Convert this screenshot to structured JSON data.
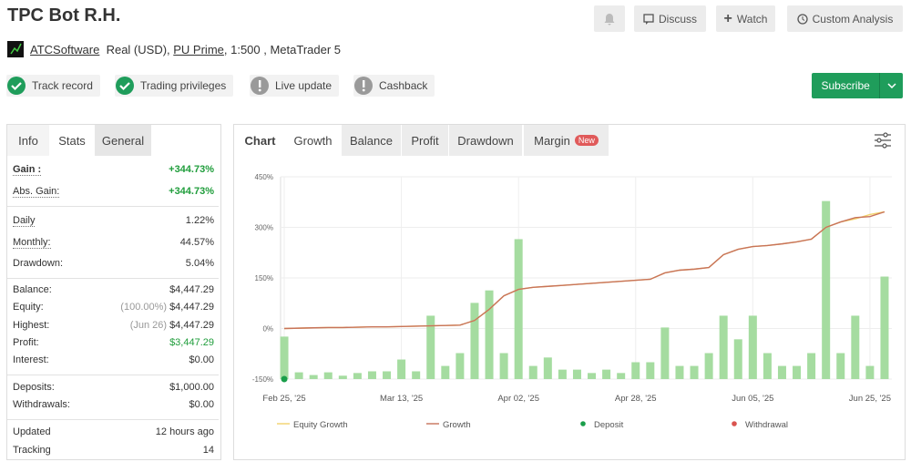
{
  "header": {
    "title": "TPC Bot R.H.",
    "buttons": [
      "Discuss",
      "Watch",
      "Custom Analysis"
    ],
    "account": {
      "owner": "ATCSoftware",
      "type": "Real (USD), ",
      "broker": "PU Prime",
      "details": ", 1:500 , MetaTrader 5"
    },
    "badges": [
      {
        "text": "Track record",
        "checked": true
      },
      {
        "text": "Trading privileges",
        "checked": true
      },
      {
        "text": "Live update",
        "checked": false
      },
      {
        "text": "Cashback",
        "checked": false
      }
    ],
    "subscribe": "Subscribe"
  },
  "left_panel": {
    "tabs": [
      "Info",
      "Stats",
      "General"
    ],
    "groups": [
      [
        {
          "label": "Gain :",
          "value": "+344.73%",
          "positive": true
        },
        {
          "label": "Abs. Gain:",
          "value": "+344.73%",
          "positive": true
        }
      ],
      [
        {
          "label": "Daily",
          "value": "1.22%"
        },
        {
          "label": "Monthly:",
          "value": "44.57%"
        },
        {
          "label": "Drawdown:",
          "value": "5.04%"
        }
      ],
      [
        {
          "label": "Balance:",
          "value": "$4,447.29"
        },
        {
          "label": "Equity:",
          "note": "(100.00%)",
          "value": "$4,447.29"
        },
        {
          "label": "Highest:",
          "note": "(Jun 26)",
          "value": "$4,447.29"
        },
        {
          "label": "Profit:",
          "value": "$3,447.29",
          "positive": true
        },
        {
          "label": "Interest:",
          "value": "$0.00"
        }
      ],
      [
        {
          "label": "Deposits:",
          "value": "$1,000.00"
        },
        {
          "label": "Withdrawals:",
          "value": "$0.00"
        }
      ],
      [
        {
          "label": "Updated",
          "value": "12 hours ago"
        },
        {
          "label": "Tracking",
          "value": "14"
        }
      ]
    ]
  },
  "chart_panel": {
    "tabs": [
      "Chart",
      "Growth",
      "Balance",
      "Profit",
      "Drawdown",
      "Margin"
    ],
    "badge": "New"
  },
  "chart_data": {
    "type": "combo",
    "categories": [
      "Feb 25, '25",
      null,
      null,
      null,
      null,
      null,
      null,
      null,
      "Mar 13, '25",
      null,
      null,
      null,
      null,
      null,
      null,
      null,
      "Apr 02, '25",
      null,
      null,
      null,
      null,
      null,
      null,
      null,
      "Apr 28, '25",
      null,
      null,
      null,
      null,
      null,
      null,
      null,
      "Jun 05, '25",
      null,
      null,
      null,
      null,
      null,
      null,
      null,
      "Jun 25, '25",
      null
    ],
    "bars": {
      "color": "#a5dca0",
      "values": [
        -24,
        -130,
        -138,
        -130,
        -140,
        -132,
        -127,
        -127,
        -92,
        -127,
        38,
        -111,
        -73,
        76,
        113,
        -73,
        265,
        -111,
        -86,
        -122,
        -122,
        -132,
        -122,
        -132,
        -100,
        -100,
        3,
        -111,
        -111,
        -73,
        38,
        -32,
        38,
        -73,
        -111,
        -111,
        -73,
        378,
        -73,
        38,
        -111,
        154
      ]
    },
    "series": [
      {
        "name": "Equity Growth",
        "kind": "line",
        "color": "#f2d36b",
        "values": [
          0,
          1,
          2,
          3,
          3,
          4,
          5,
          5,
          6,
          7,
          8,
          9,
          10,
          24,
          57,
          97,
          116,
          122,
          125,
          128,
          131,
          134,
          137,
          140,
          143,
          146,
          165,
          173,
          176,
          181,
          219,
          235,
          243,
          246,
          251,
          257,
          265,
          300,
          316,
          325,
          338,
          346
        ]
      },
      {
        "name": "Growth",
        "kind": "line",
        "color": "#c8735a",
        "values": [
          0,
          1,
          2,
          3,
          3,
          4,
          5,
          5,
          6,
          7,
          8,
          9,
          10,
          24,
          57,
          97,
          116,
          122,
          125,
          128,
          131,
          134,
          137,
          140,
          143,
          146,
          165,
          173,
          176,
          181,
          219,
          235,
          243,
          246,
          251,
          257,
          265,
          300,
          316,
          329,
          332,
          346
        ]
      },
      {
        "name": "Deposit",
        "kind": "point",
        "color": "#1a9e4a",
        "values": [
          -150,
          null,
          null,
          null,
          null,
          null,
          null,
          null,
          null,
          null,
          null,
          null,
          null,
          null,
          null,
          null,
          null,
          null,
          null,
          null,
          null,
          null,
          null,
          null,
          null,
          null,
          null,
          null,
          null,
          null,
          null,
          null,
          null,
          null,
          null,
          null,
          null,
          null,
          null,
          null,
          null,
          null
        ]
      },
      {
        "name": "Withdrawal",
        "kind": "point",
        "color": "#d9534f",
        "values": [
          null,
          null,
          null,
          null,
          null,
          null,
          null,
          null,
          null,
          null,
          null,
          null,
          null,
          null,
          null,
          null,
          null,
          null,
          null,
          null,
          null,
          null,
          null,
          null,
          null,
          null,
          null,
          null,
          null,
          null,
          null,
          null,
          null,
          null,
          null,
          null,
          null,
          null,
          null,
          null,
          null,
          null
        ]
      }
    ],
    "ylim": [
      -150,
      450
    ],
    "yticks": [
      {
        "value": -150,
        "label": "-150%"
      },
      {
        "value": 0,
        "label": "0%"
      },
      {
        "value": 150,
        "label": "150%"
      },
      {
        "value": 300,
        "label": "300%"
      },
      {
        "value": 450,
        "label": "450%"
      }
    ],
    "grid": true
  }
}
